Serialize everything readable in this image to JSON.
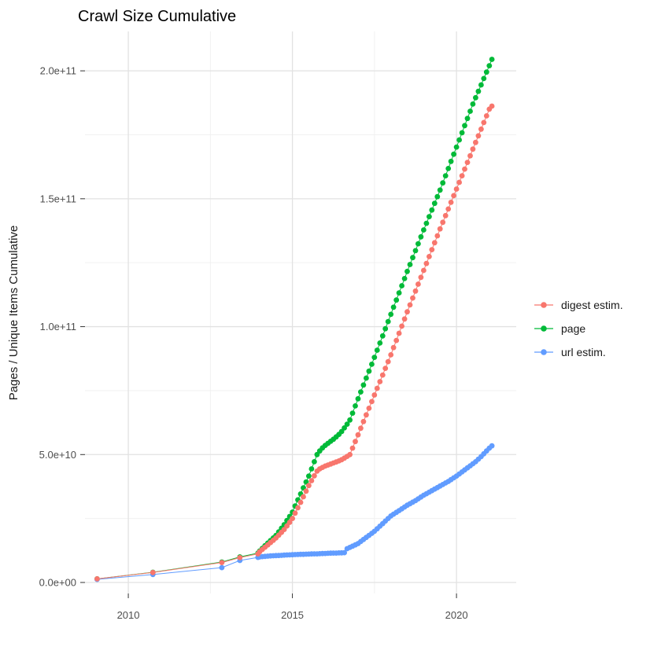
{
  "title": "Crawl Size Cumulative",
  "colors": {
    "digest": "#F8766D",
    "page": "#00BA38",
    "url": "#619CFF",
    "grid_major": "#E2E2E2",
    "grid_minor": "#EFEFEF",
    "tick_mark": "#333333",
    "axis_text": "#4d4d4d",
    "background": "#FFFFFF"
  },
  "legend": {
    "position": "right",
    "items": [
      {
        "label": "digest estim.",
        "color": "#F8766D"
      },
      {
        "label": "page",
        "color": "#00BA38"
      },
      {
        "label": "url estim.",
        "color": "#619CFF"
      }
    ]
  },
  "chart_data": {
    "type": "scatter",
    "marker": "point-with-line",
    "title": "Crawl Size Cumulative",
    "xlabel": "",
    "ylabel": "Pages / Unique Items Cumulative",
    "grid": true,
    "legend_position": "right",
    "value_unit": "billions (1e9 pages / items)",
    "xlim": [
      2008.68,
      2021.82
    ],
    "ylim_billions": [
      -4.3,
      215.4
    ],
    "x_ticks": [
      2010,
      2015,
      2020
    ],
    "x_tick_labels": [
      "2010",
      "2015",
      "2020"
    ],
    "x_minor_ticks": [
      2012.5,
      2017.5
    ],
    "y_ticks_billions": [
      0,
      50,
      100,
      150,
      200
    ],
    "y_tick_labels": [
      "0.0e+00",
      "5.0e+10",
      "1.0e+11",
      "1.5e+11",
      "2.0e+11"
    ],
    "y_minor_ticks_billions": [
      25,
      75,
      125,
      175
    ],
    "series": [
      {
        "name": "page",
        "color": "#00BA38",
        "points": [
          [
            2009.05,
            1.4
          ],
          [
            2010.75,
            4.0
          ],
          [
            2012.85,
            8.0
          ],
          [
            2013.4,
            10.0
          ],
          [
            2013.95,
            11.5
          ],
          [
            2014.0,
            12.3
          ],
          [
            2014.083,
            13.3
          ],
          [
            2014.167,
            14.4
          ],
          [
            2014.25,
            15.4
          ],
          [
            2014.333,
            16.4
          ],
          [
            2014.417,
            17.4
          ],
          [
            2014.5,
            18.4
          ],
          [
            2014.583,
            19.8
          ],
          [
            2014.667,
            21.2
          ],
          [
            2014.75,
            22.6
          ],
          [
            2014.833,
            24.2
          ],
          [
            2014.917,
            25.8
          ],
          [
            2015.0,
            27.5
          ],
          [
            2015.083,
            29.9
          ],
          [
            2015.167,
            32.3
          ],
          [
            2015.25,
            34.6
          ],
          [
            2015.333,
            37.0
          ],
          [
            2015.417,
            39.3
          ],
          [
            2015.5,
            41.6
          ],
          [
            2015.583,
            44.4
          ],
          [
            2015.667,
            47.2
          ],
          [
            2015.75,
            50.0
          ],
          [
            2015.833,
            51.4
          ],
          [
            2015.917,
            52.6
          ],
          [
            2016.0,
            53.6
          ],
          [
            2016.083,
            54.4
          ],
          [
            2016.167,
            55.2
          ],
          [
            2016.25,
            56.0
          ],
          [
            2016.333,
            56.9
          ],
          [
            2016.417,
            57.9
          ],
          [
            2016.5,
            59.0
          ],
          [
            2016.583,
            60.4
          ],
          [
            2016.667,
            61.9
          ],
          [
            2016.75,
            63.5
          ],
          [
            2016.833,
            66.2
          ],
          [
            2016.917,
            69.0
          ],
          [
            2017.0,
            71.8
          ],
          [
            2017.083,
            74.5
          ],
          [
            2017.167,
            77.2
          ],
          [
            2017.25,
            79.9
          ],
          [
            2017.333,
            82.6
          ],
          [
            2017.417,
            85.3
          ],
          [
            2017.5,
            88.0
          ],
          [
            2017.583,
            90.8
          ],
          [
            2017.667,
            93.6
          ],
          [
            2017.75,
            96.4
          ],
          [
            2017.833,
            99.2
          ],
          [
            2017.917,
            102.0
          ],
          [
            2018.0,
            104.8
          ],
          [
            2018.083,
            107.6
          ],
          [
            2018.167,
            110.4
          ],
          [
            2018.25,
            113.2
          ],
          [
            2018.333,
            116.0
          ],
          [
            2018.417,
            118.8
          ],
          [
            2018.5,
            121.6
          ],
          [
            2018.583,
            124.3
          ],
          [
            2018.667,
            127.0
          ],
          [
            2018.75,
            129.7
          ],
          [
            2018.833,
            132.4
          ],
          [
            2018.917,
            135.1
          ],
          [
            2019.0,
            137.8
          ],
          [
            2019.083,
            140.4
          ],
          [
            2019.167,
            143.0
          ],
          [
            2019.25,
            145.6
          ],
          [
            2019.333,
            148.2
          ],
          [
            2019.417,
            150.8
          ],
          [
            2019.5,
            153.4
          ],
          [
            2019.583,
            156.2
          ],
          [
            2019.667,
            159.0
          ],
          [
            2019.75,
            161.8
          ],
          [
            2019.833,
            164.6
          ],
          [
            2019.917,
            167.4
          ],
          [
            2020.0,
            170.2
          ],
          [
            2020.083,
            173.0
          ],
          [
            2020.167,
            175.8
          ],
          [
            2020.25,
            178.6
          ],
          [
            2020.333,
            181.4
          ],
          [
            2020.417,
            184.2
          ],
          [
            2020.5,
            187.0
          ],
          [
            2020.583,
            189.5
          ],
          [
            2020.667,
            192.0
          ],
          [
            2020.75,
            194.5
          ],
          [
            2020.833,
            197.0
          ],
          [
            2020.917,
            199.5
          ],
          [
            2021.0,
            202.0
          ],
          [
            2021.08,
            204.5
          ]
        ]
      },
      {
        "name": "url estim.",
        "color": "#619CFF",
        "points": [
          [
            2009.05,
            1.2
          ],
          [
            2010.75,
            3.1
          ],
          [
            2012.85,
            5.8
          ],
          [
            2013.4,
            8.6
          ],
          [
            2013.95,
            9.8
          ],
          [
            2014.0,
            10.0
          ],
          [
            2014.083,
            10.1
          ],
          [
            2014.167,
            10.2
          ],
          [
            2014.25,
            10.3
          ],
          [
            2014.333,
            10.4
          ],
          [
            2014.417,
            10.45
          ],
          [
            2014.5,
            10.5
          ],
          [
            2014.583,
            10.55
          ],
          [
            2014.667,
            10.6
          ],
          [
            2014.75,
            10.7
          ],
          [
            2014.833,
            10.75
          ],
          [
            2014.917,
            10.8
          ],
          [
            2015.0,
            10.85
          ],
          [
            2015.083,
            10.9
          ],
          [
            2015.167,
            10.95
          ],
          [
            2015.25,
            11.0
          ],
          [
            2015.333,
            11.0
          ],
          [
            2015.417,
            11.05
          ],
          [
            2015.5,
            11.1
          ],
          [
            2015.583,
            11.15
          ],
          [
            2015.667,
            11.2
          ],
          [
            2015.75,
            11.2
          ],
          [
            2015.833,
            11.25
          ],
          [
            2015.917,
            11.3
          ],
          [
            2016.0,
            11.35
          ],
          [
            2016.083,
            11.4
          ],
          [
            2016.167,
            11.45
          ],
          [
            2016.25,
            11.5
          ],
          [
            2016.333,
            11.5
          ],
          [
            2016.417,
            11.55
          ],
          [
            2016.5,
            11.6
          ],
          [
            2016.583,
            11.65
          ],
          [
            2016.667,
            13.2
          ],
          [
            2016.75,
            13.7
          ],
          [
            2016.833,
            14.2
          ],
          [
            2016.917,
            14.7
          ],
          [
            2017.0,
            15.2
          ],
          [
            2017.083,
            16.0
          ],
          [
            2017.167,
            16.8
          ],
          [
            2017.25,
            17.6
          ],
          [
            2017.333,
            18.4
          ],
          [
            2017.417,
            19.2
          ],
          [
            2017.5,
            20.0
          ],
          [
            2017.583,
            21.0
          ],
          [
            2017.667,
            22.0
          ],
          [
            2017.75,
            23.0
          ],
          [
            2017.833,
            24.0
          ],
          [
            2017.917,
            25.0
          ],
          [
            2018.0,
            26.0
          ],
          [
            2018.083,
            26.7
          ],
          [
            2018.167,
            27.4
          ],
          [
            2018.25,
            28.1
          ],
          [
            2018.333,
            28.8
          ],
          [
            2018.417,
            29.5
          ],
          [
            2018.5,
            30.2
          ],
          [
            2018.583,
            30.8
          ],
          [
            2018.667,
            31.4
          ],
          [
            2018.75,
            32.0
          ],
          [
            2018.833,
            32.7
          ],
          [
            2018.917,
            33.4
          ],
          [
            2019.0,
            34.1
          ],
          [
            2019.083,
            34.7
          ],
          [
            2019.167,
            35.3
          ],
          [
            2019.25,
            35.9
          ],
          [
            2019.333,
            36.5
          ],
          [
            2019.417,
            37.1
          ],
          [
            2019.5,
            37.7
          ],
          [
            2019.583,
            38.3
          ],
          [
            2019.667,
            38.9
          ],
          [
            2019.75,
            39.5
          ],
          [
            2019.833,
            40.2
          ],
          [
            2019.917,
            40.9
          ],
          [
            2020.0,
            41.6
          ],
          [
            2020.083,
            42.4
          ],
          [
            2020.167,
            43.2
          ],
          [
            2020.25,
            44.0
          ],
          [
            2020.333,
            44.8
          ],
          [
            2020.417,
            45.6
          ],
          [
            2020.5,
            46.4
          ],
          [
            2020.583,
            47.2
          ],
          [
            2020.667,
            48.2
          ],
          [
            2020.75,
            49.2
          ],
          [
            2020.833,
            50.3
          ],
          [
            2020.917,
            51.4
          ],
          [
            2021.0,
            52.5
          ],
          [
            2021.08,
            53.4
          ]
        ]
      },
      {
        "name": "digest estim.",
        "color": "#F8766D",
        "points": [
          [
            2009.05,
            1.4
          ],
          [
            2010.75,
            3.9
          ],
          [
            2012.85,
            7.8
          ],
          [
            2013.4,
            9.7
          ],
          [
            2013.95,
            11.2
          ],
          [
            2014.0,
            12.0
          ],
          [
            2014.083,
            12.9
          ],
          [
            2014.167,
            13.8
          ],
          [
            2014.25,
            14.7
          ],
          [
            2014.333,
            15.6
          ],
          [
            2014.417,
            16.5
          ],
          [
            2014.5,
            17.4
          ],
          [
            2014.583,
            18.5
          ],
          [
            2014.667,
            19.6
          ],
          [
            2014.75,
            20.7
          ],
          [
            2014.833,
            22.1
          ],
          [
            2014.917,
            23.5
          ],
          [
            2015.0,
            25.0
          ],
          [
            2015.083,
            27.1
          ],
          [
            2015.167,
            29.2
          ],
          [
            2015.25,
            31.3
          ],
          [
            2015.333,
            33.5
          ],
          [
            2015.417,
            35.7
          ],
          [
            2015.5,
            37.9
          ],
          [
            2015.583,
            39.8
          ],
          [
            2015.667,
            41.7
          ],
          [
            2015.75,
            43.5
          ],
          [
            2015.833,
            44.4
          ],
          [
            2015.917,
            45.0
          ],
          [
            2016.0,
            45.5
          ],
          [
            2016.083,
            45.9
          ],
          [
            2016.167,
            46.3
          ],
          [
            2016.25,
            46.7
          ],
          [
            2016.333,
            47.1
          ],
          [
            2016.417,
            47.5
          ],
          [
            2016.5,
            48.0
          ],
          [
            2016.583,
            48.6
          ],
          [
            2016.667,
            49.3
          ],
          [
            2016.75,
            50.0
          ],
          [
            2016.833,
            52.5
          ],
          [
            2016.917,
            55.1
          ],
          [
            2017.0,
            57.7
          ],
          [
            2017.083,
            60.3
          ],
          [
            2017.167,
            62.9
          ],
          [
            2017.25,
            65.5
          ],
          [
            2017.333,
            68.1
          ],
          [
            2017.417,
            70.7
          ],
          [
            2017.5,
            73.3
          ],
          [
            2017.583,
            75.9
          ],
          [
            2017.667,
            78.5
          ],
          [
            2017.75,
            81.1
          ],
          [
            2017.833,
            83.7
          ],
          [
            2017.917,
            86.3
          ],
          [
            2018.0,
            89.0
          ],
          [
            2018.083,
            91.8
          ],
          [
            2018.167,
            94.6
          ],
          [
            2018.25,
            97.4
          ],
          [
            2018.333,
            100.2
          ],
          [
            2018.417,
            103.0
          ],
          [
            2018.5,
            105.8
          ],
          [
            2018.583,
            108.5
          ],
          [
            2018.667,
            111.2
          ],
          [
            2018.75,
            113.9
          ],
          [
            2018.833,
            116.6
          ],
          [
            2018.917,
            119.3
          ],
          [
            2019.0,
            122.0
          ],
          [
            2019.083,
            124.7
          ],
          [
            2019.167,
            127.4
          ],
          [
            2019.25,
            130.1
          ],
          [
            2019.333,
            132.8
          ],
          [
            2019.417,
            135.5
          ],
          [
            2019.5,
            138.2
          ],
          [
            2019.583,
            140.8
          ],
          [
            2019.667,
            143.4
          ],
          [
            2019.75,
            146.0
          ],
          [
            2019.833,
            148.6
          ],
          [
            2019.917,
            151.2
          ],
          [
            2020.0,
            153.8
          ],
          [
            2020.083,
            156.4
          ],
          [
            2020.167,
            159.0
          ],
          [
            2020.25,
            161.6
          ],
          [
            2020.333,
            164.2
          ],
          [
            2020.417,
            166.8
          ],
          [
            2020.5,
            169.4
          ],
          [
            2020.583,
            172.0
          ],
          [
            2020.667,
            174.6
          ],
          [
            2020.75,
            177.2
          ],
          [
            2020.833,
            179.8
          ],
          [
            2020.917,
            182.4
          ],
          [
            2021.0,
            185.0
          ],
          [
            2021.08,
            186.2
          ]
        ]
      }
    ]
  }
}
